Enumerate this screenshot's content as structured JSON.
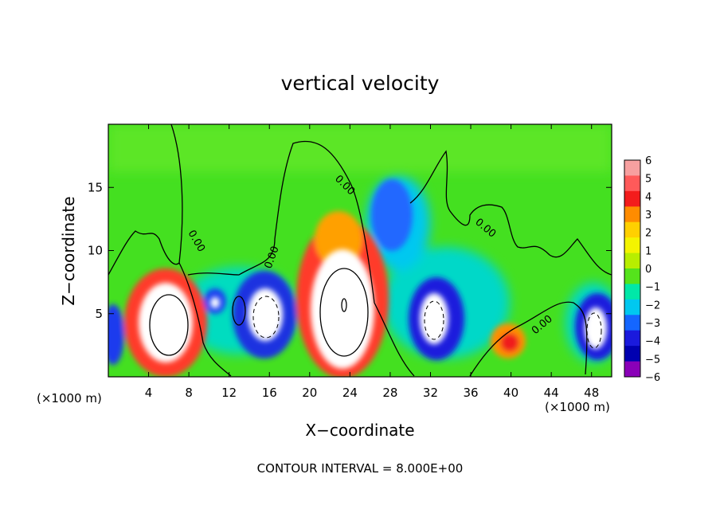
{
  "chart_data": {
    "type": "heatmap",
    "title": "vertical velocity",
    "xlabel": "X−coordinate",
    "ylabel": "Z−coordinate",
    "x_unit_left": "(×1000 m)",
    "x_unit_right": "(×1000 m)",
    "footer": "CONTOUR INTERVAL = 8.000E+00",
    "xlim": [
      0,
      50
    ],
    "ylim": [
      0,
      20
    ],
    "x_ticks": [
      4,
      8,
      12,
      16,
      20,
      24,
      28,
      32,
      36,
      40,
      44,
      48
    ],
    "y_ticks": [
      5,
      10,
      15
    ],
    "colorbar": {
      "levels": [
        "6",
        "5",
        "4",
        "3",
        "2",
        "1",
        "0",
        "−1",
        "−2",
        "−3",
        "−4",
        "−5",
        "−6"
      ],
      "colors": [
        "#f7a0a0",
        "#ff5a5a",
        "#f31c1c",
        "#ff8c00",
        "#ffd000",
        "#f4f400",
        "#b8ee00",
        "#55e31c",
        "#00e8a8",
        "#00c8f0",
        "#1466ff",
        "#1a1add",
        "#0000b0",
        "#8a00b8"
      ]
    },
    "contour_labels": [
      "0.00",
      "0.00",
      "0.00",
      "0.00",
      "0.00"
    ],
    "cells": [
      {
        "x": 5.5,
        "z": 4.0,
        "w": 8.0,
        "kind": "updraft"
      },
      {
        "x": 23.0,
        "z": 6.0,
        "w": 16.0,
        "kind": "updraft"
      },
      {
        "x": 39.5,
        "z": 2.8,
        "w": 3.0,
        "kind": "updraft"
      },
      {
        "x": 0.5,
        "z": 3.0,
        "w": -5.0,
        "kind": "downdraft"
      },
      {
        "x": 10.5,
        "z": 6.0,
        "w": -6.0,
        "kind": "downdraft"
      },
      {
        "x": 15.5,
        "z": 5.0,
        "w": -8.0,
        "kind": "downdraft"
      },
      {
        "x": 30.5,
        "z": 13.0,
        "w": -3.5,
        "kind": "downdraft"
      },
      {
        "x": 32.5,
        "z": 4.5,
        "w": -8.0,
        "kind": "downdraft"
      },
      {
        "x": 48.0,
        "z": 4.0,
        "w": -8.0,
        "kind": "downdraft"
      }
    ]
  }
}
